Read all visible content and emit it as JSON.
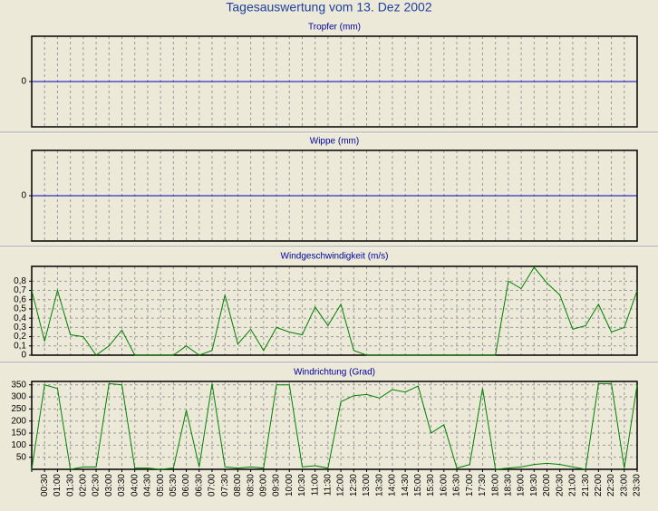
{
  "title": "Tagesauswertung vom 13. Dez 2002",
  "chart_data": [
    {
      "type": "line",
      "title": "Tropfer (mm)",
      "ylim": [
        -1,
        1
      ],
      "yticks": [
        0
      ],
      "grid": true,
      "series": [
        {
          "color": "#0000c0",
          "values": [
            0,
            0,
            0,
            0,
            0,
            0,
            0,
            0,
            0,
            0,
            0,
            0,
            0,
            0,
            0,
            0,
            0,
            0,
            0,
            0,
            0,
            0,
            0,
            0,
            0,
            0,
            0,
            0,
            0,
            0,
            0,
            0,
            0,
            0,
            0,
            0,
            0,
            0,
            0,
            0,
            0,
            0,
            0,
            0,
            0,
            0,
            0,
            0
          ]
        }
      ]
    },
    {
      "type": "line",
      "title": "Wippe (mm)",
      "ylim": [
        -1,
        1
      ],
      "yticks": [
        0
      ],
      "grid": true,
      "series": [
        {
          "color": "#0000c0",
          "values": [
            0,
            0,
            0,
            0,
            0,
            0,
            0,
            0,
            0,
            0,
            0,
            0,
            0,
            0,
            0,
            0,
            0,
            0,
            0,
            0,
            0,
            0,
            0,
            0,
            0,
            0,
            0,
            0,
            0,
            0,
            0,
            0,
            0,
            0,
            0,
            0,
            0,
            0,
            0,
            0,
            0,
            0,
            0,
            0,
            0,
            0,
            0,
            0
          ]
        }
      ]
    },
    {
      "type": "line",
      "title": "Windgeschwindigkeit (m/s)",
      "ylim": [
        0,
        0.96
      ],
      "yticks": [
        0,
        {
          "value": 0.1,
          "label": "0,1"
        },
        {
          "value": 0.2,
          "label": "0,2"
        },
        {
          "value": 0.3,
          "label": "0,3"
        },
        {
          "value": 0.4,
          "label": "0,4"
        },
        {
          "value": 0.5,
          "label": "0,5"
        },
        {
          "value": 0.6,
          "label": "0,6"
        },
        {
          "value": 0.7,
          "label": "0,7"
        },
        {
          "value": 0.8,
          "label": "0,8"
        }
      ],
      "grid": true,
      "series": [
        {
          "color": "#008000",
          "values": [
            0.7,
            0.15,
            0.7,
            0.22,
            0.2,
            0,
            0.1,
            0.27,
            0,
            0,
            0,
            0,
            0.1,
            0,
            0.05,
            0.65,
            0.12,
            0.28,
            0.05,
            0.3,
            0.25,
            0.22,
            0.52,
            0.32,
            0.55,
            0.05,
            0,
            0,
            0,
            0,
            0,
            0,
            0,
            0,
            0,
            0,
            0,
            0.8,
            0.72,
            0.95,
            0.78,
            0.65,
            0.28,
            0.32,
            0.55,
            0.25,
            0.3,
            0.7
          ]
        }
      ]
    },
    {
      "type": "line",
      "title": "Windrichtung (Grad)",
      "ylim": [
        0,
        364
      ],
      "yticks": [
        50,
        100,
        150,
        200,
        250,
        300,
        350
      ],
      "grid": true,
      "categories": [
        null,
        "00:30",
        "01:00",
        "01:30",
        "02:00",
        "02:30",
        "03:00",
        "03:30",
        "04:00",
        "04:30",
        "05:00",
        "05:30",
        "06:00",
        "06:30",
        "07:00",
        "07:30",
        "08:00",
        "08:30",
        "09:00",
        "09:30",
        "10:00",
        "10:30",
        "11:00",
        "11:30",
        "12:00",
        "12:30",
        "13:00",
        "13:30",
        "14:00",
        "14:30",
        "15:00",
        "15:30",
        "16:00",
        "16:30",
        "17:00",
        "17:30",
        "18:00",
        "18:30",
        "19:00",
        "19:30",
        "20:00",
        "20:30",
        "21:00",
        "21:30",
        "22:00",
        "22:30",
        "23:00",
        "23:30"
      ],
      "series": [
        {
          "color": "#008000",
          "values": [
            0,
            350,
            335,
            0,
            10,
            10,
            355,
            350,
            5,
            5,
            0,
            5,
            245,
            10,
            355,
            10,
            5,
            10,
            5,
            350,
            350,
            10,
            15,
            5,
            280,
            305,
            310,
            295,
            330,
            320,
            345,
            150,
            185,
            5,
            20,
            335,
            0,
            5,
            10,
            20,
            25,
            20,
            10,
            0,
            355,
            355,
            5,
            350
          ]
        }
      ]
    }
  ]
}
